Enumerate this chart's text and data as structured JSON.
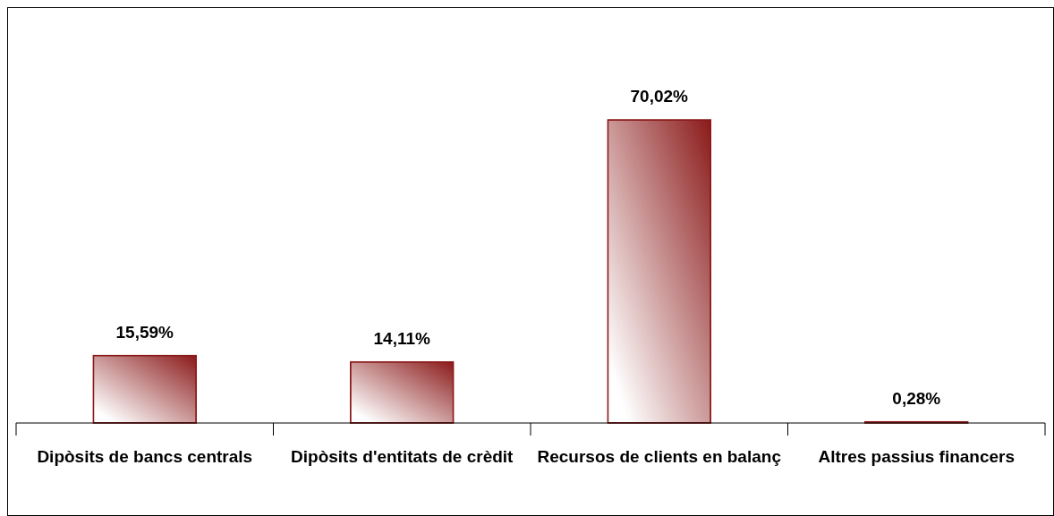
{
  "chart_data": {
    "type": "bar",
    "categories": [
      "Dipòsits de bancs centrals",
      "Dipòsits d'entitats de crèdit",
      "Recursos de clients en balanç",
      "Altres passius financers"
    ],
    "values": [
      15.59,
      14.11,
      70.02,
      0.28
    ],
    "value_labels": [
      "15,59%",
      "14,11%",
      "70,02%",
      "0,28%"
    ],
    "color": "#8b1a1a"
  }
}
